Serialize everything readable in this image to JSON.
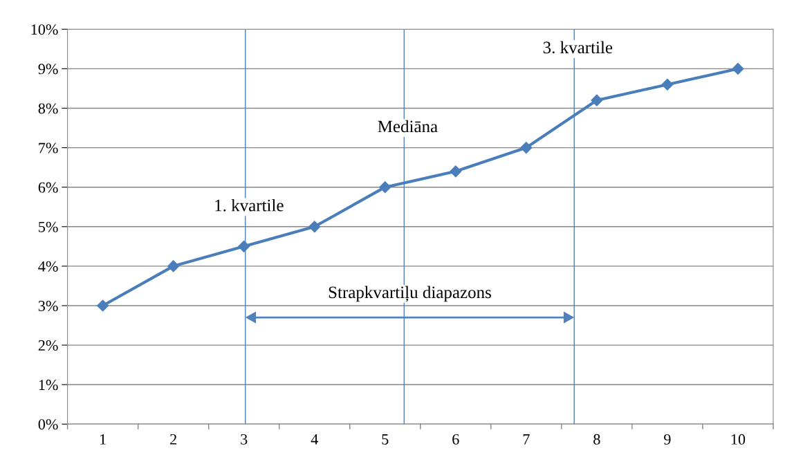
{
  "chart_data": {
    "type": "line",
    "x": [
      1,
      2,
      3,
      4,
      5,
      6,
      7,
      8,
      9,
      10
    ],
    "series": [
      {
        "color": "#4a7ebb",
        "values": [
          3,
          4,
          4.5,
          5,
          6,
          6.4,
          7,
          8.2,
          8.6,
          9
        ]
      }
    ],
    "xlim": [
      0.5,
      10.5
    ],
    "xticks": [
      1,
      2,
      3,
      4,
      5,
      6,
      7,
      8,
      9,
      10
    ],
    "ylim": [
      0,
      10
    ],
    "yticks": [
      {
        "value": 0,
        "label": "0%"
      },
      {
        "value": 1,
        "label": "1%"
      },
      {
        "value": 2,
        "label": "2%"
      },
      {
        "value": 3,
        "label": "3%"
      },
      {
        "value": 4,
        "label": "4%"
      },
      {
        "value": 5,
        "label": "5%"
      },
      {
        "value": 6,
        "label": "6%"
      },
      {
        "value": 7,
        "label": "7%"
      },
      {
        "value": 8,
        "label": "8%"
      },
      {
        "value": 9,
        "label": "9%"
      },
      {
        "value": 10,
        "label": "10%"
      }
    ],
    "grid": "y",
    "marker": "diamond",
    "line_style": "solid",
    "ref_lines": [
      {
        "axis": "x",
        "value": 3.02,
        "label": "1. kvartile",
        "color": "#4f81bd"
      },
      {
        "axis": "x",
        "value": 5.27,
        "label": "Mediāna",
        "color": "#4f81bd"
      },
      {
        "axis": "x",
        "value": 7.68,
        "label": "3. kvartile",
        "color": "#4f81bd"
      }
    ],
    "annotations": [
      "Strapkvartiļu diapazons"
    ]
  }
}
